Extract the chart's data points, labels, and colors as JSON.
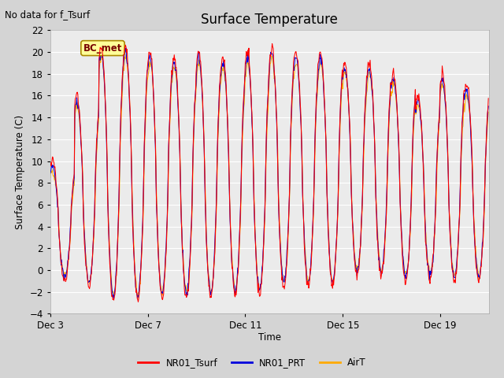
{
  "title": "Surface Temperature",
  "no_data_label": "No data for f_Tsurf",
  "station_label": "BC_met",
  "ylabel": "Surface Temperature (C)",
  "xlabel": "Time",
  "ylim": [
    -4,
    22
  ],
  "yticks": [
    -4,
    -2,
    0,
    2,
    4,
    6,
    8,
    10,
    12,
    14,
    16,
    18,
    20,
    22
  ],
  "xtick_labels": [
    "Dec 3",
    "Dec 7",
    "Dec 11",
    "Dec 15",
    "Dec 19"
  ],
  "xtick_positions": [
    3,
    7,
    11,
    15,
    19
  ],
  "plot_bg": "#ebebeb",
  "fig_bg": "#d4d4d4",
  "grid_color": "#ffffff",
  "line_colors": {
    "NR01_Tsurf": "#ff0000",
    "NR01_PRT": "#0000dd",
    "AirT": "#ffaa00"
  },
  "legend": [
    {
      "label": "NR01_Tsurf",
      "color": "#ff0000"
    },
    {
      "label": "NR01_PRT",
      "color": "#0000dd"
    },
    {
      "label": "AirT",
      "color": "#ffaa00"
    }
  ]
}
